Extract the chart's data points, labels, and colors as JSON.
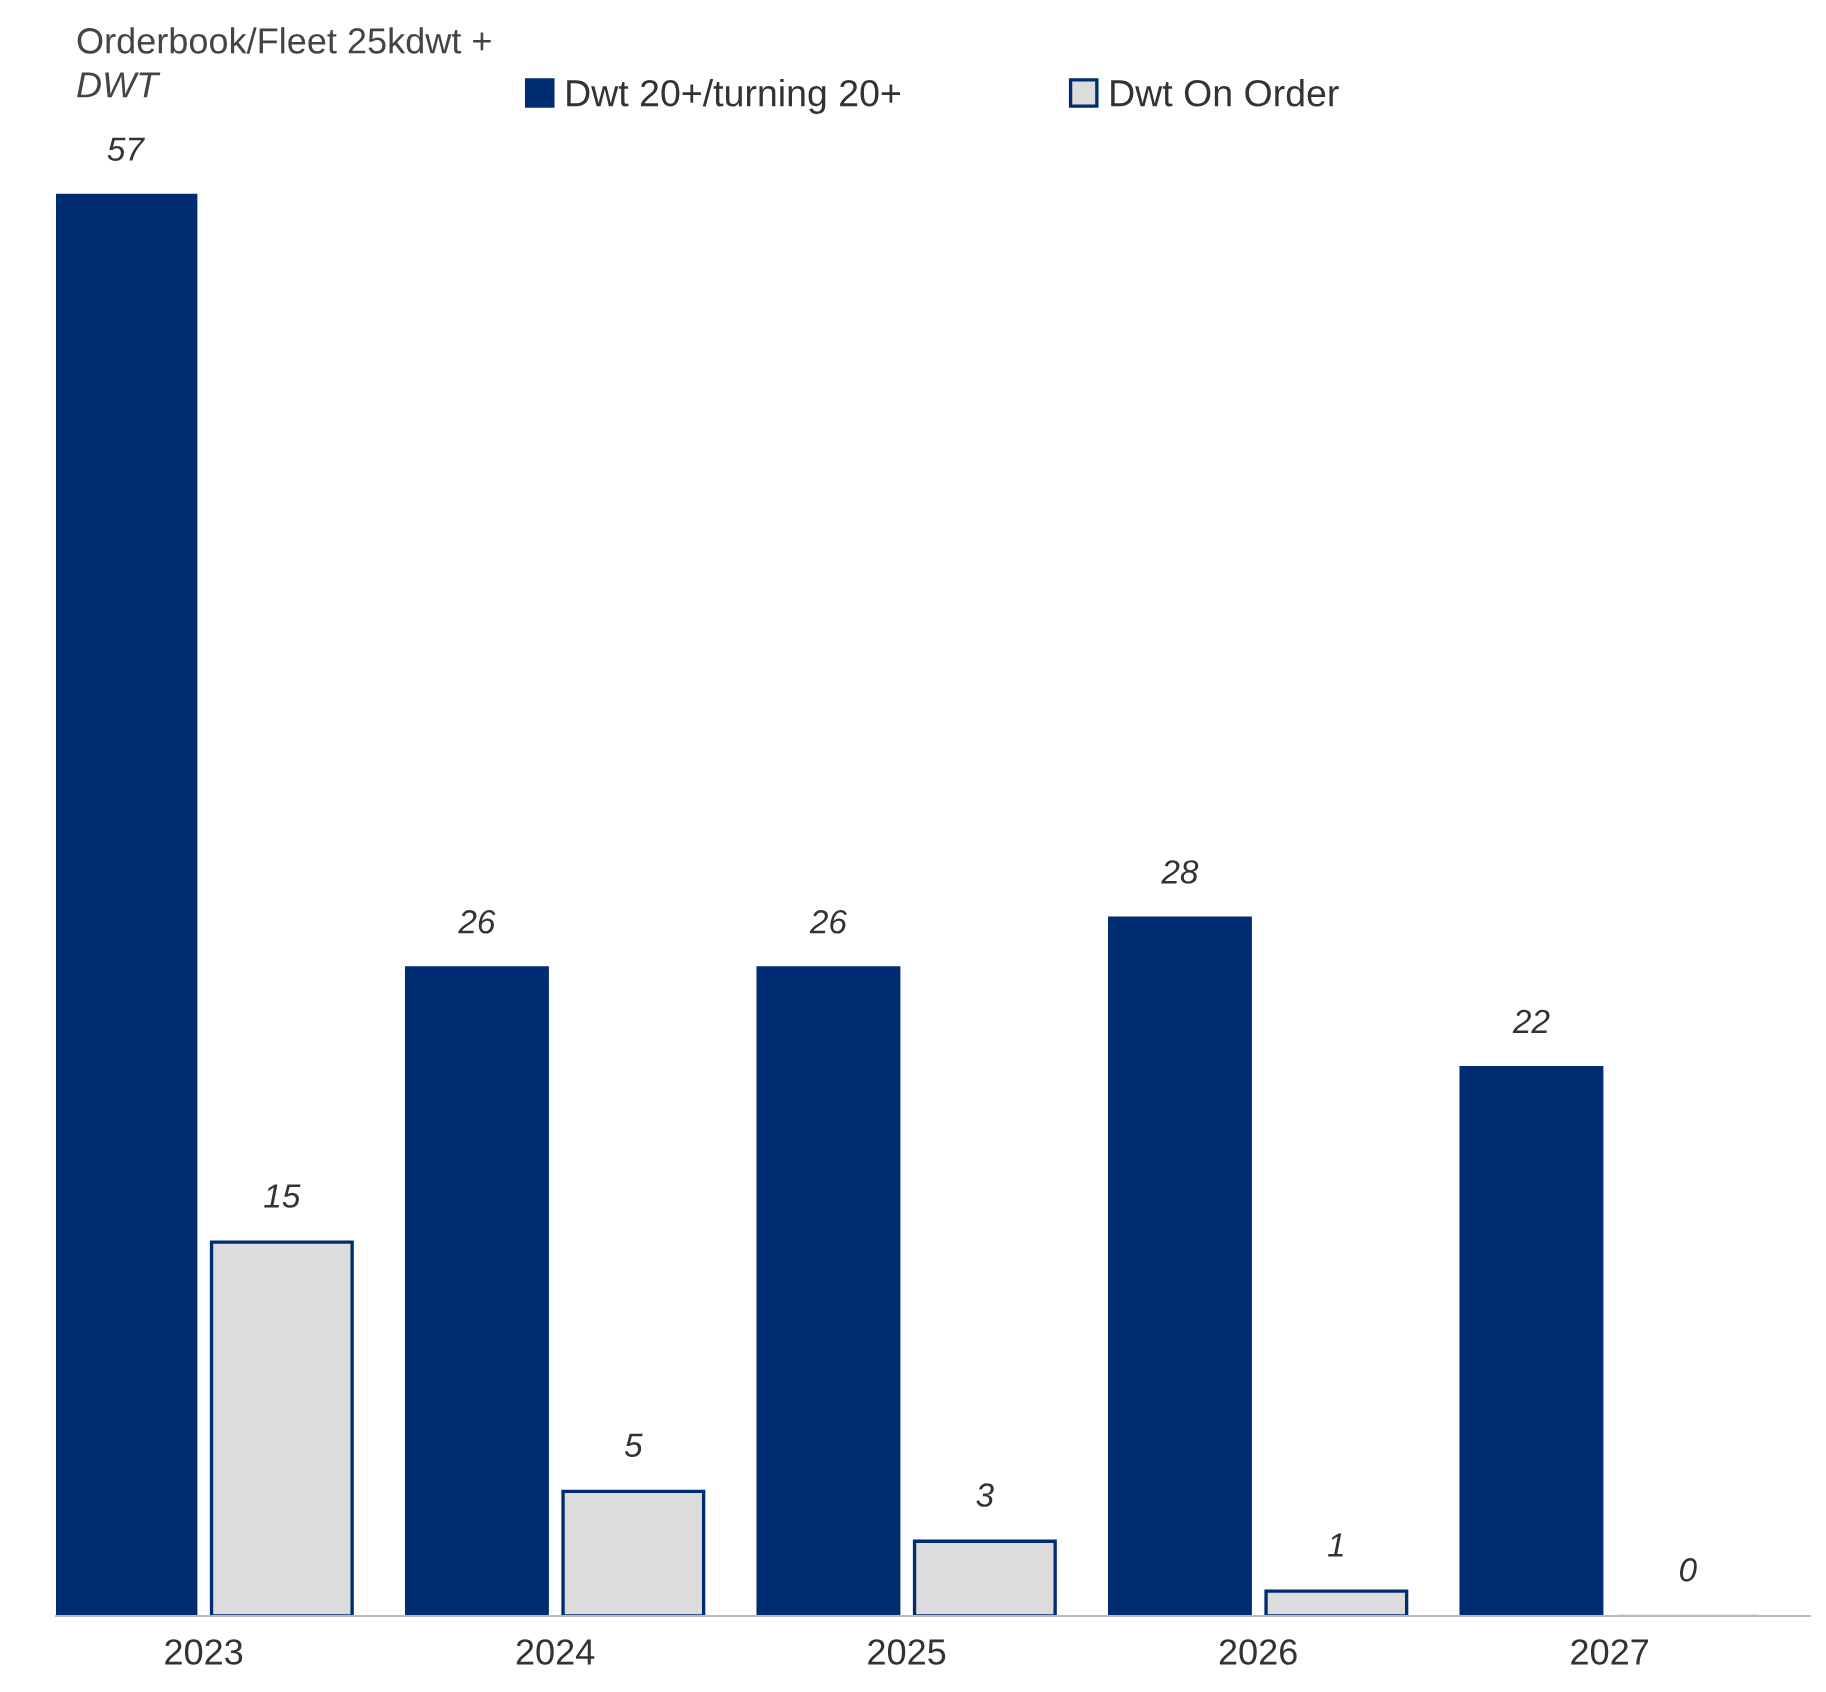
{
  "chart_data": {
    "type": "bar",
    "title": "Orderbook/Fleet 25kdwt +",
    "ylabel": "DWT",
    "categories": [
      "2023",
      "2024",
      "2025",
      "2026",
      "2027"
    ],
    "series": [
      {
        "name": "Dwt 20+/turning 20+",
        "color": "#002d72",
        "values": [
          57,
          26,
          26,
          28,
          22
        ]
      },
      {
        "name": "Dwt On Order",
        "color": "#dcdcdc",
        "values": [
          15,
          5,
          3,
          1,
          0
        ]
      }
    ],
    "data_labels": true,
    "legend": "top",
    "grid": false
  }
}
